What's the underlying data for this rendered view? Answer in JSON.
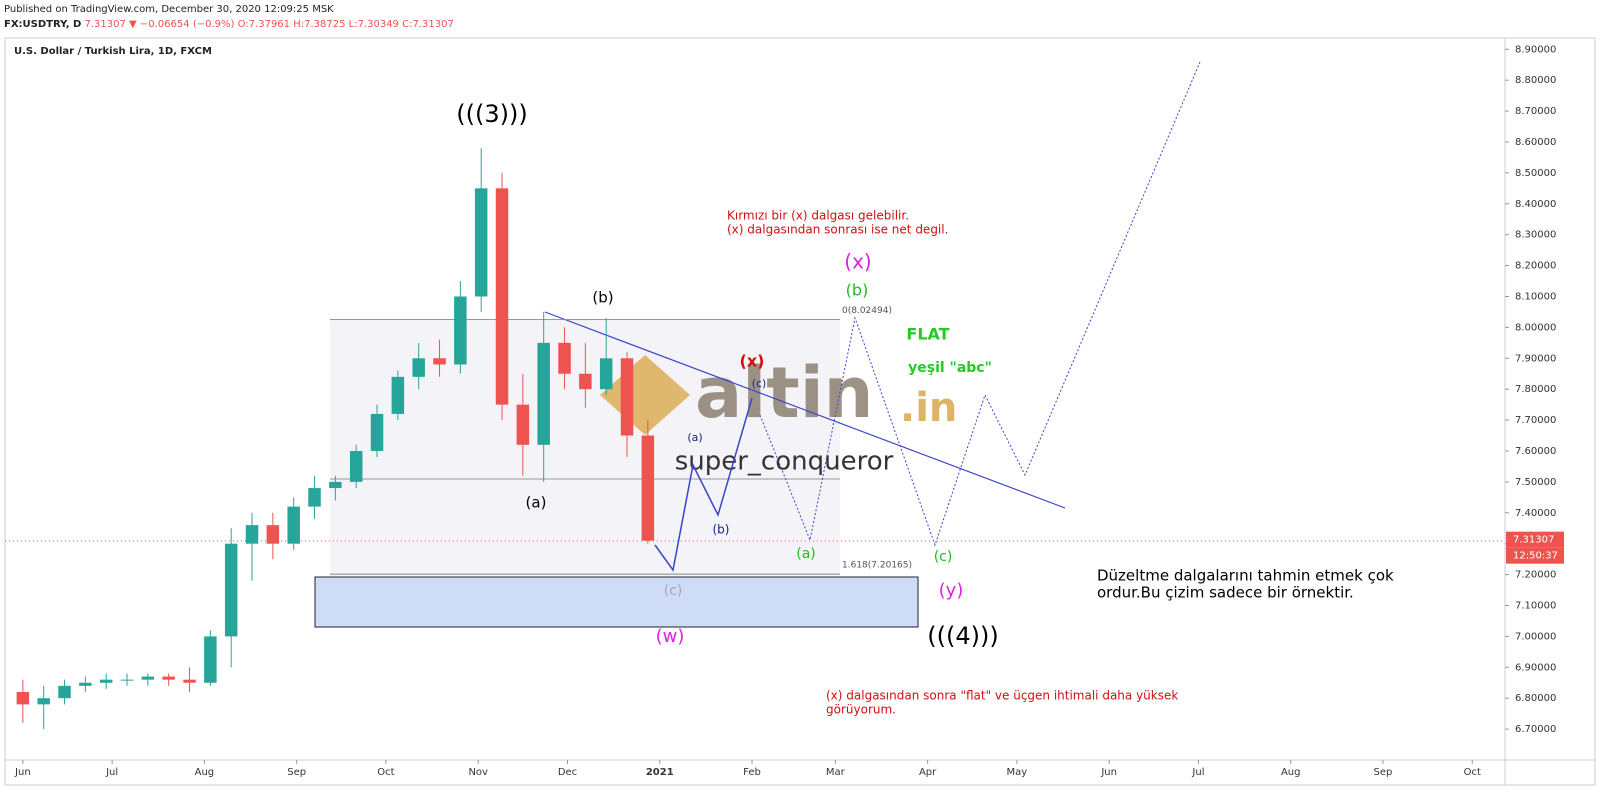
{
  "header": {
    "published": "Published on TradingView.com, December 30, 2020 12:09:25 MSK",
    "symbol": "FX:USDTRY, D",
    "price": "7.31307",
    "change": "▼ −0.06654 (−0.9%)",
    "ohlc": "O:7.37961 H:7.38725 L:7.30349 C:7.31307"
  },
  "chart_data": {
    "type": "candlestick",
    "title": "U.S. Dollar / Turkish Lira, 1D, FXCM",
    "x": [
      0,
      7,
      14,
      21,
      28,
      35,
      42,
      49,
      56,
      63,
      70,
      77,
      84,
      91,
      98,
      105,
      112,
      119,
      126,
      133,
      140,
      147,
      154,
      161,
      168,
      175,
      182,
      189,
      196,
      203,
      210
    ],
    "open": [
      6.82,
      6.78,
      6.8,
      6.84,
      6.85,
      6.86,
      6.86,
      6.87,
      6.86,
      6.85,
      7.0,
      7.3,
      7.36,
      7.3,
      7.42,
      7.48,
      7.5,
      7.6,
      7.72,
      7.84,
      7.9,
      7.88,
      8.1,
      8.45,
      7.75,
      7.62,
      7.95,
      7.85,
      7.8,
      7.9,
      7.65
    ],
    "high": [
      6.86,
      6.84,
      6.86,
      6.87,
      6.88,
      6.88,
      6.88,
      6.88,
      6.9,
      7.02,
      7.35,
      7.4,
      7.4,
      7.45,
      7.52,
      7.52,
      7.62,
      7.75,
      7.86,
      7.95,
      7.96,
      8.15,
      8.58,
      8.5,
      7.85,
      8.05,
      8.0,
      7.95,
      8.03,
      7.92,
      7.7
    ],
    "low": [
      6.72,
      6.7,
      6.78,
      6.82,
      6.83,
      6.84,
      6.84,
      6.84,
      6.82,
      6.84,
      6.9,
      7.18,
      7.25,
      7.28,
      7.38,
      7.44,
      7.48,
      7.58,
      7.7,
      7.8,
      7.84,
      7.85,
      8.05,
      7.7,
      7.52,
      7.5,
      7.8,
      7.74,
      7.78,
      7.58,
      7.3
    ],
    "close": [
      6.78,
      6.8,
      6.84,
      6.85,
      6.86,
      6.86,
      6.87,
      6.86,
      6.85,
      7.0,
      7.3,
      7.36,
      7.3,
      7.42,
      7.48,
      7.5,
      7.6,
      7.72,
      7.84,
      7.9,
      7.88,
      8.1,
      8.45,
      7.75,
      7.62,
      7.95,
      7.85,
      7.8,
      7.9,
      7.65,
      7.31
    ],
    "up_color": "#26a69a",
    "down_color": "#ef5350",
    "xlim": [
      -6,
      498
    ],
    "ylim": [
      6.6,
      8.93
    ],
    "xticks": [
      {
        "value": 0,
        "label": "Jun"
      },
      {
        "value": 30,
        "label": "Jul"
      },
      {
        "value": 61,
        "label": "Aug"
      },
      {
        "value": 92,
        "label": "Sep"
      },
      {
        "value": 122,
        "label": "Oct"
      },
      {
        "value": 153,
        "label": "Nov"
      },
      {
        "value": 183,
        "label": "Dec"
      },
      {
        "value": 214,
        "label": "2021"
      },
      {
        "value": 245,
        "label": "Feb"
      },
      {
        "value": 273,
        "label": "Mar"
      },
      {
        "value": 304,
        "label": "Apr"
      },
      {
        "value": 334,
        "label": "May"
      },
      {
        "value": 365,
        "label": "Jun"
      },
      {
        "value": 395,
        "label": "Jul"
      },
      {
        "value": 426,
        "label": "Aug"
      },
      {
        "value": 457,
        "label": "Sep"
      },
      {
        "value": 487,
        "label": "Oct"
      }
    ],
    "yticks": [
      {
        "value": 6.7,
        "label": "6.70000"
      },
      {
        "value": 6.8,
        "label": "6.80000"
      },
      {
        "value": 6.9,
        "label": "6.90000"
      },
      {
        "value": 7.0,
        "label": "7.00000"
      },
      {
        "value": 7.1,
        "label": "7.10000"
      },
      {
        "value": 7.2,
        "label": "7.20000"
      },
      {
        "value": 7.3,
        "label": "7.30000"
      },
      {
        "value": 7.4,
        "label": "7.40000"
      },
      {
        "value": 7.5,
        "label": "7.50000"
      },
      {
        "value": 7.6,
        "label": "7.60000"
      },
      {
        "value": 7.7,
        "label": "7.70000"
      },
      {
        "value": 7.8,
        "label": "7.80000"
      },
      {
        "value": 7.9,
        "label": "7.90000"
      },
      {
        "value": 8.0,
        "label": "8.00000"
      },
      {
        "value": 8.1,
        "label": "8.10000"
      },
      {
        "value": 8.2,
        "label": "8.20000"
      },
      {
        "value": 8.3,
        "label": "8.30000"
      },
      {
        "value": 8.4,
        "label": "8.40000"
      },
      {
        "value": 8.5,
        "label": "8.50000"
      },
      {
        "value": 8.6,
        "label": "8.60000"
      },
      {
        "value": 8.7,
        "label": "8.70000"
      },
      {
        "value": 8.8,
        "label": "8.80000"
      },
      {
        "value": 8.9,
        "label": "8.90000"
      }
    ],
    "last_price": {
      "value": 7.31307,
      "label": "7.31307"
    },
    "countdown": "12:50:37",
    "fib_levels": [
      {
        "value": 8.02494,
        "label": "0(8.02494)"
      },
      {
        "value": 7.20165,
        "label": "1.618(7.20165)"
      }
    ],
    "annotations": [
      "(((3)))",
      "(b)",
      "(a)",
      "(x)",
      "(c)",
      "(a)",
      "(b)",
      "(c)",
      "(w)",
      "(a)",
      "(x)",
      "(b)",
      "FLAT",
      "yeşil \"abc\"",
      "(c)",
      "(y)",
      "(((4)))",
      "Kırmızı bir (x) dalgası gelebilir.",
      "(x) dalgasından sonrası ise net degil.",
      "Düzeltme dalgalarını tahmin etmek çok",
      "ordur.Bu çizim sadece bir örnektir.",
      "(x) dalgasından sonra  \"flat\" ve üçgen ihtimali daha yüksek",
      "görüyorum."
    ],
    "watermark": [
      "altin",
      ".in",
      "super_conqueror"
    ]
  }
}
